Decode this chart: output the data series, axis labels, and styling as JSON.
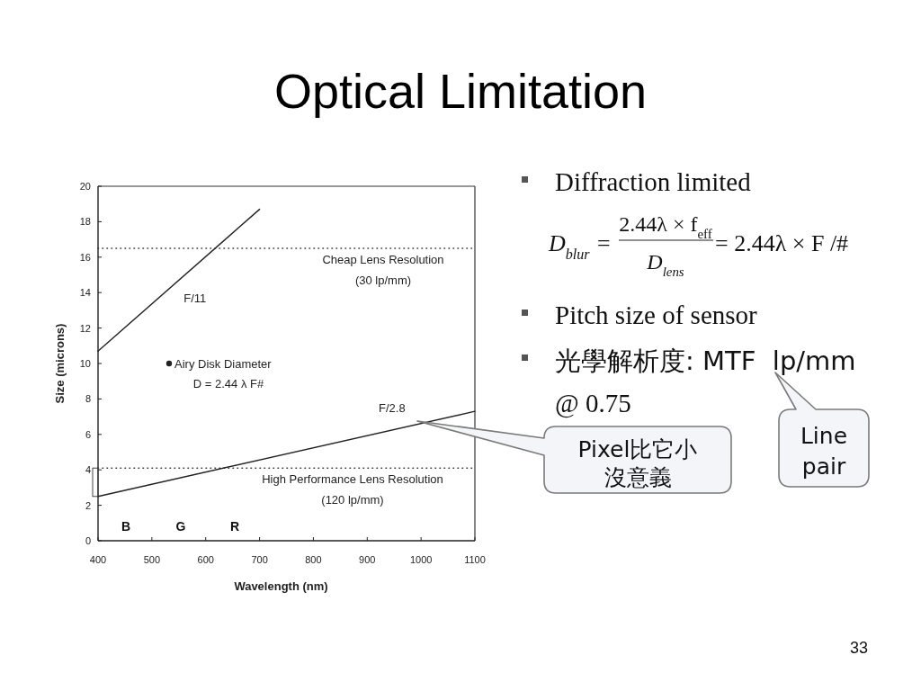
{
  "chart_data": {
    "type": "line",
    "title": "Optical Limitation",
    "xlabel": "Wavelength (nm)",
    "ylabel": "Size (microns)",
    "xlim": [
      400,
      1100
    ],
    "xticks": [
      400,
      500,
      600,
      700,
      800,
      900,
      1000,
      1100
    ],
    "ylim": [
      0,
      20
    ],
    "yticks": [
      0,
      2,
      4,
      6,
      8,
      10,
      12,
      14,
      16,
      18,
      20
    ],
    "line_style": "solid",
    "series": [
      {
        "name": "F/11",
        "color": "#222222",
        "x": [
          400,
          700
        ],
        "values": [
          10.7,
          18.7
        ]
      },
      {
        "name": "F/2.8",
        "color": "#222222",
        "x": [
          400,
          1100
        ],
        "values": [
          2.5,
          7.3
        ]
      },
      {
        "type": "scatter",
        "marker": "circle",
        "color": "#222222",
        "x": [
          532
        ],
        "values": [
          10
        ]
      }
    ],
    "ref_lines": [
      {
        "axis": "y",
        "value": 16.5,
        "label": "Cheap Lens Resolution (30 lp/mm)",
        "color": "#333333",
        "line_style": "dotted"
      },
      {
        "axis": "y",
        "value": 4.1,
        "label": "High Performance Lens Resolution (120 lp/mm)",
        "color": "#333333",
        "line_style": "dotted"
      }
    ],
    "annotations": [
      "Diffraction limited",
      "D$_{blur}$ =",
      "2.44λ × f$_{eff}$",
      "D$_{lens}$",
      "= 2.44λ × F /#",
      "Pitch size of sensor",
      "光學解析度: MTF  lp/mm\n@ 0.75",
      "Pixel比它小沒意義",
      "Line\npair",
      {
        "text": "Airy Disk Diameter\nD = 2.44 λ F#",
        "x": 532,
        "y": 10
      },
      "B",
      "G",
      "R",
      "33"
    ]
  }
}
